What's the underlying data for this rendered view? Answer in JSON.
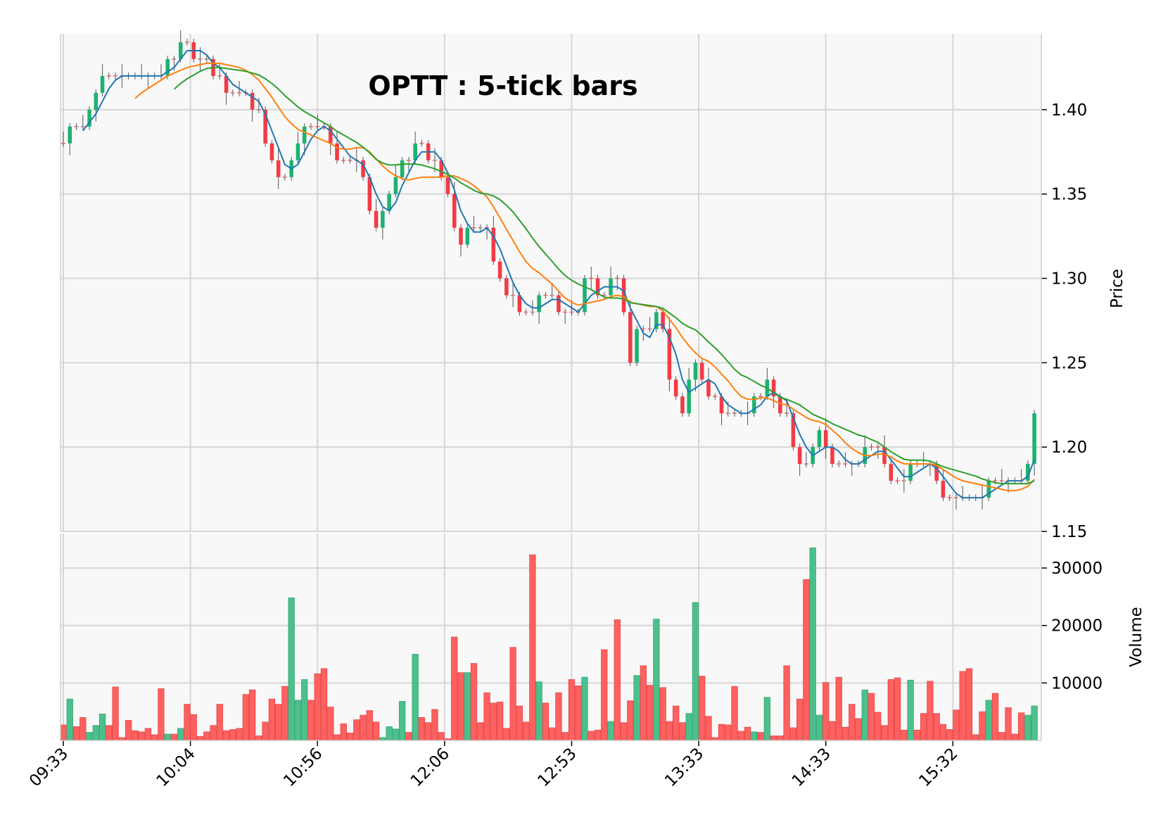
{
  "chart_data": {
    "type": "candlestick",
    "title": "OPTT : 5-tick bars",
    "price_panel": {
      "ylabel": "Price",
      "ylim": [
        1.15,
        1.445
      ],
      "yticks": [
        1.15,
        1.2,
        1.25,
        1.3,
        1.35,
        1.4
      ],
      "ytick_labels": [
        "1.15",
        "1.20",
        "1.25",
        "1.30",
        "1.35",
        "1.40"
      ],
      "grid": true
    },
    "volume_panel": {
      "ylabel": "Volume",
      "ylim": [
        0,
        36000
      ],
      "yticks": [
        10000,
        20000,
        30000
      ],
      "ytick_labels": [
        "10000",
        "20000",
        "30000"
      ],
      "grid": true
    },
    "x_axis": {
      "bar_count": 150,
      "tick_positions": [
        0,
        19.5,
        39,
        58.5,
        78,
        97.5,
        117,
        136.5
      ],
      "tick_labels": [
        "09:33",
        "10:04",
        "10:56",
        "12:06",
        "12:53",
        "13:33",
        "14:33",
        "15:32"
      ]
    },
    "colors": {
      "up": "#1db270",
      "down": "#f23b45",
      "up_volume": "#4cc08c",
      "down_volume": "#ff6060",
      "ma_short": "#1f77b4",
      "ma_mid": "#ff7f0e",
      "ma_long": "#2ca02c",
      "panel_bg": "#f8f8f8",
      "grid": "#d6d6d6"
    },
    "series": [
      {
        "name": "price (close)",
        "values": [
          1.38,
          1.39,
          1.39,
          1.39,
          1.4,
          1.41,
          1.42,
          1.42,
          1.42,
          1.42,
          1.42,
          1.42,
          1.42,
          1.42,
          1.42,
          1.42,
          1.43,
          1.43,
          1.44,
          1.44,
          1.43,
          1.43,
          1.43,
          1.42,
          1.42,
          1.41,
          1.41,
          1.41,
          1.41,
          1.4,
          1.4,
          1.38,
          1.37,
          1.36,
          1.36,
          1.37,
          1.38,
          1.39,
          1.39,
          1.39,
          1.39,
          1.38,
          1.37,
          1.37,
          1.37,
          1.37,
          1.36,
          1.34,
          1.33,
          1.34,
          1.35,
          1.36,
          1.37,
          1.37,
          1.38,
          1.38,
          1.37,
          1.37,
          1.36,
          1.35,
          1.33,
          1.32,
          1.33,
          1.33,
          1.33,
          1.33,
          1.31,
          1.3,
          1.29,
          1.29,
          1.28,
          1.28,
          1.28,
          1.29,
          1.29,
          1.29,
          1.28,
          1.28,
          1.28,
          1.28,
          1.3,
          1.3,
          1.29,
          1.29,
          1.3,
          1.3,
          1.28,
          1.25,
          1.27,
          1.27,
          1.27,
          1.28,
          1.27,
          1.24,
          1.23,
          1.22,
          1.24,
          1.25,
          1.24,
          1.23,
          1.23,
          1.22,
          1.22,
          1.22,
          1.22,
          1.22,
          1.23,
          1.23,
          1.24,
          1.23,
          1.22,
          1.22,
          1.2,
          1.19,
          1.19,
          1.2,
          1.21,
          1.2,
          1.19,
          1.19,
          1.19,
          1.19,
          1.19,
          1.2,
          1.2,
          1.2,
          1.19,
          1.18,
          1.18,
          1.18,
          1.19,
          1.19,
          1.19,
          1.19,
          1.18,
          1.17,
          1.17,
          1.17,
          1.17,
          1.17,
          1.17,
          1.17,
          1.18,
          1.18,
          1.18,
          1.18,
          1.18,
          1.18,
          1.19,
          1.22
        ]
      },
      {
        "name": "volume",
        "values": [
          2700,
          7200,
          2400,
          4000,
          1400,
          2600,
          4600,
          2600,
          9300,
          500,
          3500,
          1700,
          1500,
          2100,
          1000,
          9000,
          1100,
          1100,
          2100,
          6300,
          4500,
          700,
          1500,
          2600,
          6300,
          1700,
          1900,
          2100,
          8000,
          8800,
          800,
          3200,
          7200,
          6300,
          9400,
          24800,
          7000,
          10600,
          7000,
          11600,
          12500,
          5800,
          1000,
          2900,
          1300,
          3600,
          4400,
          5200,
          3200,
          500,
          2400,
          2000,
          6800,
          1400,
          15000,
          4000,
          3100,
          5400,
          1400,
          300,
          18000,
          11800,
          11800,
          13400,
          3100,
          8300,
          6500,
          6700,
          2100,
          16200,
          6000,
          3200,
          32300,
          10200,
          6500,
          2200,
          8300,
          1400,
          10600,
          9500,
          11000,
          1600,
          1800,
          15800,
          3300,
          21000,
          3100,
          6900,
          11300,
          13000,
          9600,
          21100,
          9200,
          3300,
          6000,
          3100,
          4700,
          24000,
          11200,
          4200,
          500,
          2800,
          2700,
          9400,
          1600,
          2300,
          1500,
          1400,
          7500,
          800,
          800,
          13000,
          2200,
          7200,
          28000,
          33500,
          4400,
          10100,
          3300,
          11000,
          2300,
          6300,
          3800,
          8800,
          8200,
          4900,
          2600,
          10600,
          10900,
          1800,
          10500,
          1800,
          4700,
          10300,
          4700,
          2800,
          1900,
          5300,
          12000,
          12500,
          1000,
          5000,
          7000,
          8200,
          1400,
          5700,
          1100,
          4800,
          4400,
          6000
        ]
      }
    ],
    "moving_averages": [
      "ma_short",
      "ma_mid",
      "ma_long"
    ]
  }
}
